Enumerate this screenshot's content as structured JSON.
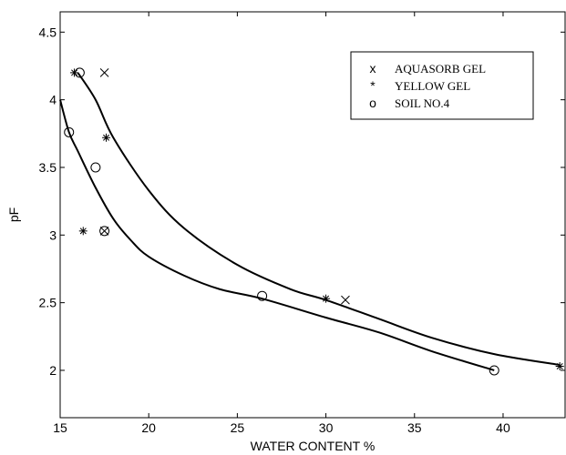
{
  "chart_data": {
    "type": "scatter",
    "xlabel": "WATER CONTENT %",
    "ylabel": "pF",
    "xlim": [
      15,
      43.5
    ],
    "ylim": [
      1.65,
      4.65
    ],
    "x_ticks": [
      15,
      20,
      25,
      30,
      35,
      40
    ],
    "y_ticks": [
      2,
      2.5,
      3,
      3.5,
      4,
      4.5
    ],
    "x_tick_labels": [
      "15",
      "20",
      "25",
      "30",
      "35",
      "40"
    ],
    "y_tick_labels": [
      "2",
      "2.5",
      "3",
      "3.5",
      "4",
      "4.5"
    ],
    "grid": false,
    "legend_position": "top-right",
    "series": [
      {
        "name": "AQUASORB GEL",
        "marker": "x",
        "symbol": "x",
        "points": [
          [
            17.5,
            4.2
          ],
          [
            17.5,
            3.03
          ],
          [
            31.1,
            2.52
          ]
        ]
      },
      {
        "name": "YELLOW GEL",
        "marker": "star",
        "symbol": "*",
        "points": [
          [
            15.8,
            4.2
          ],
          [
            16.3,
            3.03
          ],
          [
            17.6,
            3.72
          ],
          [
            30.0,
            2.53
          ],
          [
            43.2,
            2.03
          ]
        ]
      },
      {
        "name": "SOIL NO.4",
        "marker": "circle",
        "symbol": "o",
        "points": [
          [
            16.1,
            4.2
          ],
          [
            15.5,
            3.76
          ],
          [
            17.0,
            3.5
          ],
          [
            17.5,
            3.03
          ],
          [
            26.4,
            2.55
          ],
          [
            39.5,
            2.0
          ]
        ]
      }
    ],
    "fit_curves": [
      {
        "points": [
          [
            16.0,
            4.2
          ],
          [
            17.0,
            4.0
          ],
          [
            18.0,
            3.72
          ],
          [
            20.0,
            3.33
          ],
          [
            22.0,
            3.05
          ],
          [
            25.0,
            2.78
          ],
          [
            28.0,
            2.6
          ],
          [
            30.0,
            2.52
          ],
          [
            33.0,
            2.38
          ],
          [
            36.0,
            2.24
          ],
          [
            39.5,
            2.12
          ],
          [
            43.2,
            2.04
          ]
        ]
      },
      {
        "points": [
          [
            15.0,
            4.0
          ],
          [
            15.5,
            3.76
          ],
          [
            16.0,
            3.62
          ],
          [
            17.0,
            3.35
          ],
          [
            18.0,
            3.12
          ],
          [
            19.0,
            2.96
          ],
          [
            20.0,
            2.84
          ],
          [
            22.0,
            2.7
          ],
          [
            24.0,
            2.6
          ],
          [
            26.4,
            2.53
          ],
          [
            30.0,
            2.39
          ],
          [
            33.0,
            2.28
          ],
          [
            36.0,
            2.14
          ],
          [
            39.5,
            2.0
          ]
        ]
      }
    ]
  }
}
